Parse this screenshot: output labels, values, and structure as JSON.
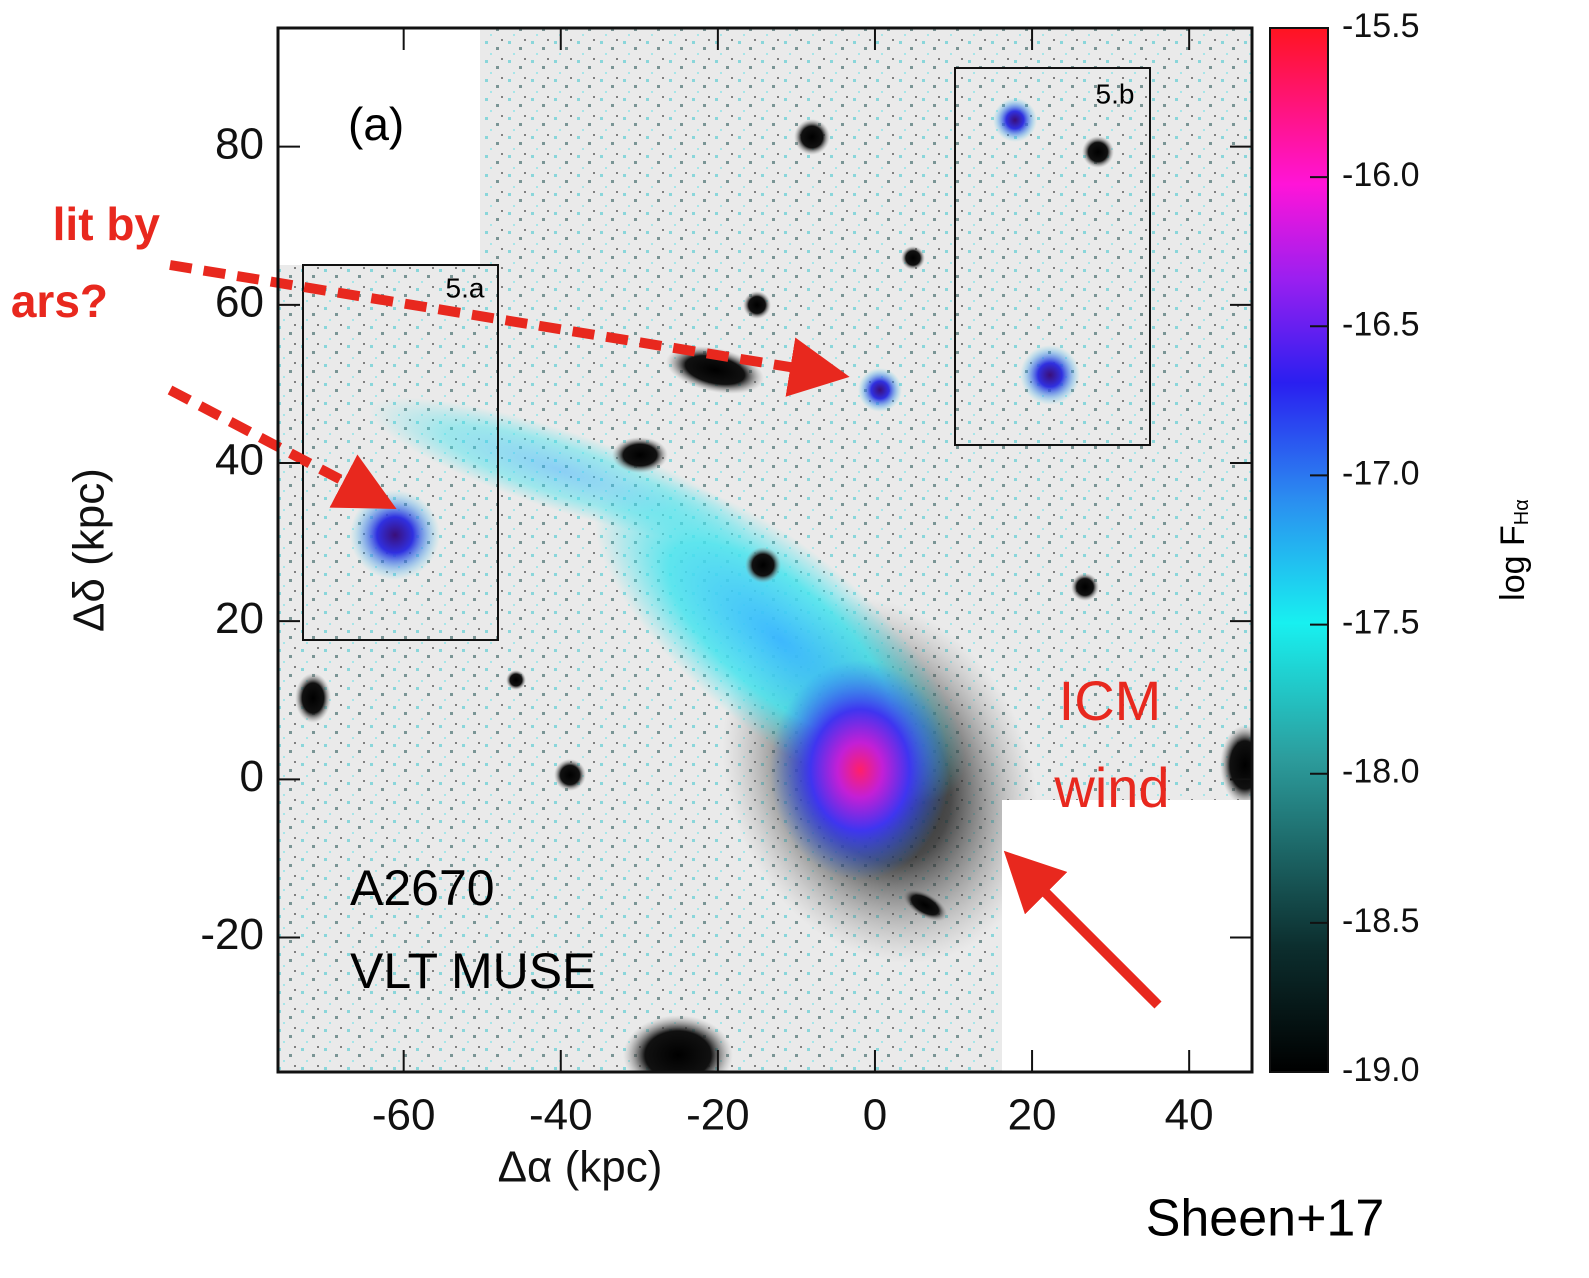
{
  "chart_data": {
    "type": "image",
    "xlabel": "Δα (kpc)",
    "ylabel": "Δδ (kpc)",
    "xlim": [
      -76,
      48
    ],
    "xticks": [
      -60,
      -40,
      -20,
      0,
      20,
      40
    ],
    "ylim": [
      -37,
      95
    ],
    "yticks": [
      -20,
      0,
      20,
      40,
      60,
      80
    ],
    "colorbar": {
      "label": "log F",
      "label_sub": "Hα",
      "lim": [
        -19.0,
        -15.5
      ],
      "ticks": [
        {
          "value": -15.5,
          "label": "-15.5"
        },
        {
          "value": -16.0,
          "label": "-16.0"
        },
        {
          "value": -16.5,
          "label": "-16.5"
        },
        {
          "value": -17.0,
          "label": "-17.0"
        },
        {
          "value": -17.5,
          "label": "-17.5"
        },
        {
          "value": -18.0,
          "label": "-18.0"
        },
        {
          "value": -18.5,
          "label": "-18.5"
        },
        {
          "value": -19.0,
          "label": "-19.0"
        }
      ]
    },
    "panel_label": "(a)",
    "boxes": [
      "5.a",
      "5.b"
    ],
    "annotations": [
      "A2670",
      "VLT MUSE",
      "ICM",
      "wind",
      "lit by",
      "ars?",
      "Sheen+17"
    ]
  }
}
